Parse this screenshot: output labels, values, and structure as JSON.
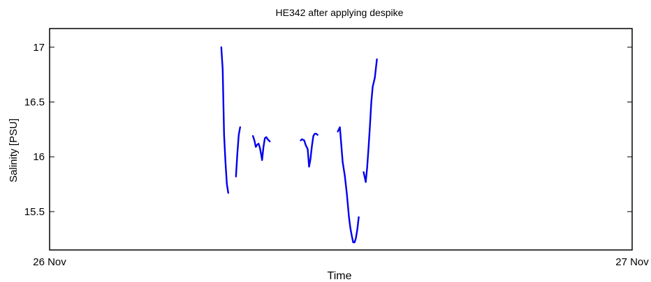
{
  "chart_data": {
    "type": "line",
    "title": "HE342 after applying despike",
    "xlabel": "Time",
    "ylabel": "Salinity [PSU]",
    "xlim": [
      0,
      1
    ],
    "ylim": [
      15.15,
      17.17
    ],
    "x_tick_labels": [
      {
        "value": 0,
        "label": "26 Nov"
      },
      {
        "value": 1,
        "label": "27 Nov"
      }
    ],
    "y_ticks": [
      {
        "value": 15.5,
        "label": "15.5"
      },
      {
        "value": 16,
        "label": "16"
      },
      {
        "value": 16.5,
        "label": "16.5"
      },
      {
        "value": 17,
        "label": "17"
      }
    ],
    "grid": false,
    "series": [
      {
        "color": "#0000ee",
        "segments": [
          [
            [
              0.2947,
              17.0
            ],
            [
              0.2971,
              16.8
            ],
            [
              0.2995,
              16.2
            ],
            [
              0.3019,
              15.95
            ],
            [
              0.3043,
              15.75
            ],
            [
              0.3067,
              15.67
            ]
          ],
          [
            [
              0.3199,
              15.82
            ],
            [
              0.3223,
              16.03
            ],
            [
              0.3247,
              16.2
            ],
            [
              0.3271,
              16.27
            ]
          ],
          [
            [
              0.3491,
              16.19
            ],
            [
              0.3515,
              16.15
            ],
            [
              0.3539,
              16.09
            ],
            [
              0.3563,
              16.11
            ],
            [
              0.3587,
              16.12
            ],
            [
              0.3611,
              16.08
            ],
            [
              0.3635,
              16.01
            ],
            [
              0.3647,
              15.97
            ],
            [
              0.3671,
              16.09
            ],
            [
              0.3695,
              16.17
            ],
            [
              0.3719,
              16.18
            ],
            [
              0.3743,
              16.16
            ],
            [
              0.3779,
              16.14
            ]
          ],
          [
            [
              0.4311,
              16.15
            ],
            [
              0.4335,
              16.16
            ],
            [
              0.4371,
              16.15
            ],
            [
              0.4395,
              16.11
            ],
            [
              0.4431,
              16.07
            ],
            [
              0.4455,
              15.91
            ],
            [
              0.4479,
              15.98
            ],
            [
              0.4503,
              16.1
            ],
            [
              0.4527,
              16.19
            ],
            [
              0.4551,
              16.21
            ],
            [
              0.4575,
              16.21
            ],
            [
              0.4599,
              16.2
            ]
          ],
          [
            [
              0.4947,
              16.23
            ],
            [
              0.4983,
              16.27
            ],
            [
              0.5007,
              16.11
            ],
            [
              0.5031,
              15.95
            ],
            [
              0.5067,
              15.83
            ],
            [
              0.5103,
              15.66
            ],
            [
              0.5139,
              15.45
            ],
            [
              0.5163,
              15.35
            ],
            [
              0.5187,
              15.28
            ],
            [
              0.5211,
              15.22
            ],
            [
              0.5235,
              15.22
            ],
            [
              0.5259,
              15.26
            ],
            [
              0.5283,
              15.34
            ],
            [
              0.5307,
              15.45
            ]
          ],
          [
            [
              0.5391,
              15.86
            ],
            [
              0.5427,
              15.77
            ],
            [
              0.5451,
              15.9
            ],
            [
              0.5475,
              16.08
            ],
            [
              0.5499,
              16.28
            ],
            [
              0.5523,
              16.5
            ],
            [
              0.5547,
              16.64
            ],
            [
              0.5583,
              16.72
            ],
            [
              0.5619,
              16.89
            ]
          ]
        ]
      }
    ]
  }
}
